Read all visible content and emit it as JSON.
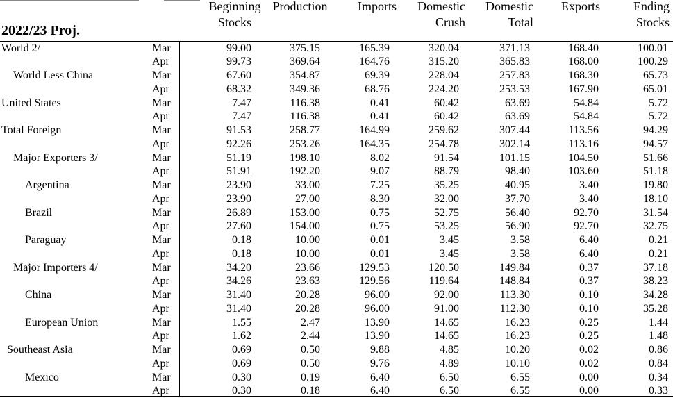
{
  "table": {
    "title": "2022/23 Proj.",
    "columns": [
      {
        "l1": "Beginning",
        "l2": "Stocks"
      },
      {
        "l1": "Production",
        "l2": ""
      },
      {
        "l1": "Imports",
        "l2": ""
      },
      {
        "l1": "Domestic",
        "l2": "Crush"
      },
      {
        "l1": "Domestic",
        "l2": "Total"
      },
      {
        "l1": "Exports",
        "l2": ""
      },
      {
        "l1": "Ending",
        "l2": "Stocks"
      }
    ],
    "rows": [
      {
        "region": "World  2/",
        "level": 0,
        "month": "Mar",
        "values": [
          "99.00",
          "375.15",
          "165.39",
          "320.04",
          "371.13",
          "168.40",
          "100.01"
        ]
      },
      {
        "region": "",
        "level": 0,
        "month": "Apr",
        "values": [
          "99.73",
          "369.64",
          "164.76",
          "315.20",
          "365.83",
          "168.00",
          "100.29"
        ]
      },
      {
        "region": "World Less China",
        "level": 2,
        "month": "Mar",
        "values": [
          "67.60",
          "354.87",
          "69.39",
          "228.04",
          "257.83",
          "168.30",
          "65.73"
        ]
      },
      {
        "region": "",
        "level": 0,
        "month": "Apr",
        "values": [
          "68.32",
          "349.36",
          "68.76",
          "224.20",
          "253.53",
          "167.90",
          "65.01"
        ]
      },
      {
        "region": "United States",
        "level": 0,
        "month": "Mar",
        "values": [
          "7.47",
          "116.38",
          "0.41",
          "60.42",
          "63.69",
          "54.84",
          "5.72"
        ]
      },
      {
        "region": "",
        "level": 0,
        "month": "Apr",
        "values": [
          "7.47",
          "116.38",
          "0.41",
          "60.42",
          "63.69",
          "54.84",
          "5.72"
        ]
      },
      {
        "region": "Total Foreign",
        "level": 0,
        "month": "Mar",
        "values": [
          "91.53",
          "258.77",
          "164.99",
          "259.62",
          "307.44",
          "113.56",
          "94.29"
        ]
      },
      {
        "region": "",
        "level": 0,
        "month": "Apr",
        "values": [
          "92.26",
          "253.26",
          "164.35",
          "254.78",
          "302.14",
          "113.16",
          "94.57"
        ]
      },
      {
        "region": "Major Exporters  3/",
        "level": 2,
        "month": "Mar",
        "values": [
          "51.19",
          "198.10",
          "8.02",
          "91.54",
          "101.15",
          "104.50",
          "51.66"
        ]
      },
      {
        "region": "",
        "level": 0,
        "month": "Apr",
        "values": [
          "51.91",
          "192.20",
          "9.07",
          "88.79",
          "98.40",
          "103.60",
          "51.18"
        ]
      },
      {
        "region": "Argentina",
        "level": 3,
        "month": "Mar",
        "values": [
          "23.90",
          "33.00",
          "7.25",
          "35.25",
          "40.95",
          "3.40",
          "19.80"
        ]
      },
      {
        "region": "",
        "level": 0,
        "month": "Apr",
        "values": [
          "23.90",
          "27.00",
          "8.30",
          "32.00",
          "37.70",
          "3.40",
          "18.10"
        ]
      },
      {
        "region": "Brazil",
        "level": 3,
        "month": "Mar",
        "values": [
          "26.89",
          "153.00",
          "0.75",
          "52.75",
          "56.40",
          "92.70",
          "31.54"
        ]
      },
      {
        "region": "",
        "level": 0,
        "month": "Apr",
        "values": [
          "27.60",
          "154.00",
          "0.75",
          "53.25",
          "56.90",
          "92.70",
          "32.75"
        ]
      },
      {
        "region": "Paraguay",
        "level": 3,
        "month": "Mar",
        "values": [
          "0.18",
          "10.00",
          "0.01",
          "3.45",
          "3.58",
          "6.40",
          "0.21"
        ]
      },
      {
        "region": "",
        "level": 0,
        "month": "Apr",
        "values": [
          "0.18",
          "10.00",
          "0.01",
          "3.45",
          "3.58",
          "6.40",
          "0.21"
        ]
      },
      {
        "region": "Major Importers  4/",
        "level": 2,
        "month": "Mar",
        "values": [
          "34.20",
          "23.66",
          "129.53",
          "120.50",
          "149.84",
          "0.37",
          "37.18"
        ]
      },
      {
        "region": "",
        "level": 0,
        "month": "Apr",
        "values": [
          "34.26",
          "23.63",
          "129.56",
          "119.64",
          "148.84",
          "0.37",
          "38.23"
        ]
      },
      {
        "region": "China",
        "level": 3,
        "month": "Mar",
        "values": [
          "31.40",
          "20.28",
          "96.00",
          "92.00",
          "113.30",
          "0.10",
          "34.28"
        ]
      },
      {
        "region": "",
        "level": 0,
        "month": "Apr",
        "values": [
          "31.40",
          "20.28",
          "96.00",
          "91.00",
          "112.30",
          "0.10",
          "35.28"
        ]
      },
      {
        "region": "European Union",
        "level": 3,
        "month": "Mar",
        "values": [
          "1.55",
          "2.47",
          "13.90",
          "14.65",
          "16.23",
          "0.25",
          "1.44"
        ]
      },
      {
        "region": "",
        "level": 0,
        "month": "Apr",
        "values": [
          "1.62",
          "2.44",
          "13.90",
          "14.65",
          "16.23",
          "0.25",
          "1.48"
        ]
      },
      {
        "region": "Southeast Asia",
        "level": 1,
        "month": "Mar",
        "values": [
          "0.69",
          "0.50",
          "9.88",
          "4.85",
          "10.20",
          "0.02",
          "0.86"
        ]
      },
      {
        "region": "",
        "level": 0,
        "month": "Apr",
        "values": [
          "0.69",
          "0.50",
          "9.76",
          "4.89",
          "10.10",
          "0.02",
          "0.84"
        ]
      },
      {
        "region": "Mexico",
        "level": 3,
        "month": "Mar",
        "values": [
          "0.30",
          "0.19",
          "6.40",
          "6.50",
          "6.55",
          "0.00",
          "0.34"
        ]
      },
      {
        "region": "",
        "level": 0,
        "month": "Apr",
        "values": [
          "0.30",
          "0.18",
          "6.40",
          "6.50",
          "6.55",
          "0.00",
          "0.33"
        ]
      }
    ]
  }
}
